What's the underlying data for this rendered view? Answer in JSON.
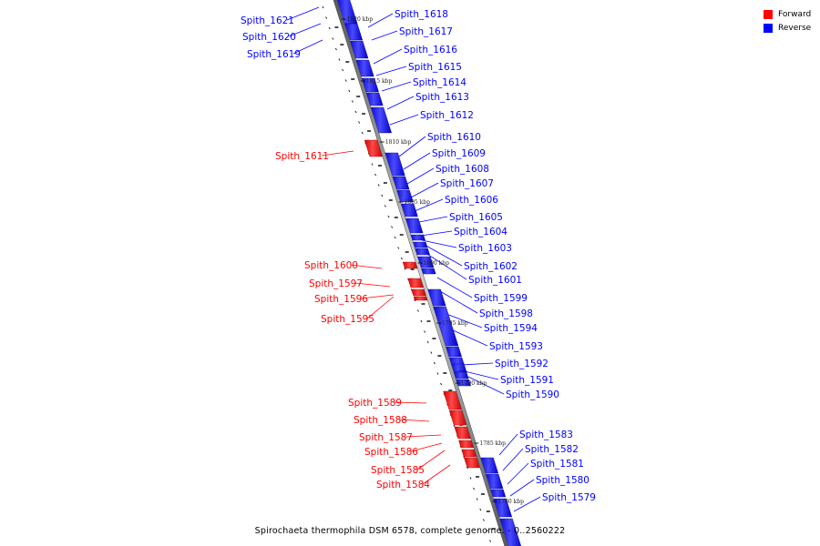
{
  "legend": {
    "forward_label": "Forward",
    "reverse_label": "Reverse",
    "forward_color": "#ff0000",
    "reverse_color": "#0000ff"
  },
  "caption": "Spirochaeta thermophila DSM 6578, complete genome. - 0..2560222",
  "scale_labels": [
    "1820 kbp",
    "1815 kbp",
    "1810 kbp",
    "1805 kbp",
    "1800 kbp",
    "1795 kbp",
    "1790 kbp",
    "1785 kbp",
    "1780 kbp"
  ],
  "genes": [
    {
      "name": "Spith_1621",
      "strand": "reverse"
    },
    {
      "name": "Spith_1620",
      "strand": "reverse"
    },
    {
      "name": "Spith_1619",
      "strand": "reverse"
    },
    {
      "name": "Spith_1618",
      "strand": "reverse"
    },
    {
      "name": "Spith_1617",
      "strand": "reverse"
    },
    {
      "name": "Spith_1616",
      "strand": "reverse"
    },
    {
      "name": "Spith_1615",
      "strand": "reverse"
    },
    {
      "name": "Spith_1614",
      "strand": "reverse"
    },
    {
      "name": "Spith_1613",
      "strand": "reverse"
    },
    {
      "name": "Spith_1612",
      "strand": "reverse"
    },
    {
      "name": "Spith_1611",
      "strand": "forward"
    },
    {
      "name": "Spith_1610",
      "strand": "reverse"
    },
    {
      "name": "Spith_1609",
      "strand": "reverse"
    },
    {
      "name": "Spith_1608",
      "strand": "reverse"
    },
    {
      "name": "Spith_1607",
      "strand": "reverse"
    },
    {
      "name": "Spith_1606",
      "strand": "reverse"
    },
    {
      "name": "Spith_1605",
      "strand": "reverse"
    },
    {
      "name": "Spith_1604",
      "strand": "reverse"
    },
    {
      "name": "Spith_1603",
      "strand": "reverse"
    },
    {
      "name": "Spith_1602",
      "strand": "reverse"
    },
    {
      "name": "Spith_1601",
      "strand": "reverse"
    },
    {
      "name": "Spith_1600",
      "strand": "forward"
    },
    {
      "name": "Spith_1599",
      "strand": "reverse"
    },
    {
      "name": "Spith_1598",
      "strand": "reverse"
    },
    {
      "name": "Spith_1597",
      "strand": "forward"
    },
    {
      "name": "Spith_1596",
      "strand": "forward"
    },
    {
      "name": "Spith_1595",
      "strand": "forward"
    },
    {
      "name": "Spith_1594",
      "strand": "reverse"
    },
    {
      "name": "Spith_1593",
      "strand": "reverse"
    },
    {
      "name": "Spith_1592",
      "strand": "reverse"
    },
    {
      "name": "Spith_1591",
      "strand": "reverse"
    },
    {
      "name": "Spith_1590",
      "strand": "reverse"
    },
    {
      "name": "Spith_1589",
      "strand": "forward"
    },
    {
      "name": "Spith_1588",
      "strand": "forward"
    },
    {
      "name": "Spith_1587",
      "strand": "forward"
    },
    {
      "name": "Spith_1586",
      "strand": "forward"
    },
    {
      "name": "Spith_1585",
      "strand": "forward"
    },
    {
      "name": "Spith_1584",
      "strand": "forward"
    },
    {
      "name": "Spith_1583",
      "strand": "reverse"
    },
    {
      "name": "Spith_1582",
      "strand": "reverse"
    },
    {
      "name": "Spith_1581",
      "strand": "reverse"
    },
    {
      "name": "Spith_1580",
      "strand": "reverse"
    },
    {
      "name": "Spith_1579",
      "strand": "reverse"
    }
  ]
}
